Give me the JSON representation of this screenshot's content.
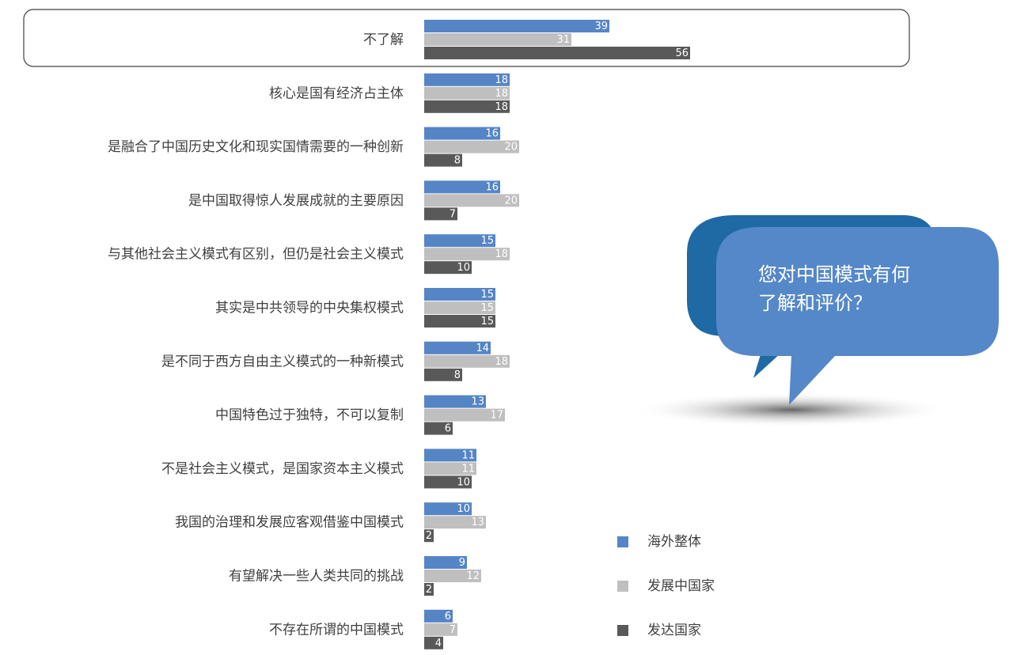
{
  "chart_data": {
    "type": "bar",
    "orientation": "horizontal",
    "categories": [
      "不了解",
      "核心是国有经济占主体",
      "是融合了中国历史文化和现实国情需要的一种创新",
      "是中国取得惊人发展成就的主要原因",
      "与其他社会主义模式有区别，但仍是社会主义模式",
      "其实是中共领导的中央集权模式",
      "是不同于西方自由主义模式的一种新模式",
      "中国特色过于独特，不可以复制",
      "不是社会主义模式，是国家资本主义模式",
      "我国的治理和发展应客观借鉴中国模式",
      "有望解决一些人类共同的挑战",
      "不存在所谓的中国模式"
    ],
    "series": [
      {
        "name": "海外整体",
        "color": "#5585c5",
        "values": [
          39,
          18,
          16,
          16,
          15,
          15,
          14,
          13,
          11,
          10,
          9,
          6
        ]
      },
      {
        "name": "发展中国家",
        "color": "#bfbfbf",
        "values": [
          31,
          18,
          20,
          20,
          18,
          15,
          18,
          17,
          11,
          13,
          12,
          7
        ]
      },
      {
        "name": "发达国家",
        "color": "#595959",
        "values": [
          56,
          18,
          8,
          7,
          10,
          15,
          8,
          6,
          10,
          2,
          2,
          4
        ]
      }
    ],
    "callout": [
      "您对中国模式有何",
      "了解和评价？"
    ]
  }
}
